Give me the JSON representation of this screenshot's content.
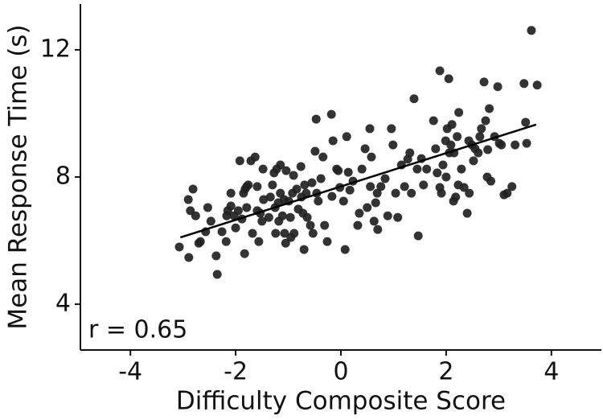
{
  "chart_data": {
    "type": "scatter",
    "xlabel": "Difficulty Composite Score",
    "ylabel": "Mean Response Time (s)",
    "annotation": "r = 0.65",
    "color": "#222222",
    "xlim": [
      -4.95,
      4.95
    ],
    "xticks": [
      -4,
      -2,
      0,
      2,
      4
    ],
    "ylim": [
      2.56,
      13.44
    ],
    "yticks": [
      4,
      8,
      12
    ],
    "grid": false,
    "x": [
      -3.07,
      -2.9,
      -2.81,
      -2.86,
      -2.76,
      -2.89,
      -2.7,
      -2.67,
      -2.57,
      -2.47,
      -2.53,
      -2.37,
      -2.35,
      -2.26,
      -2.15,
      -2.17,
      -2.09,
      -2.09,
      -2.03,
      -2.0,
      -1.95,
      -1.92,
      -1.88,
      -1.85,
      -1.82,
      -1.83,
      -1.79,
      -1.79,
      -1.71,
      -1.68,
      -1.63,
      -1.59,
      -1.59,
      -1.56,
      -1.53,
      -1.5,
      -1.48,
      -1.47,
      -1.37,
      -1.34,
      -1.3,
      -1.27,
      -1.25,
      -1.24,
      -1.22,
      -1.19,
      -1.18,
      -1.15,
      -1.15,
      -1.11,
      -1.08,
      -1.07,
      -1.05,
      -1.04,
      -0.99,
      -0.96,
      -0.95,
      -0.92,
      -0.9,
      -0.89,
      -0.84,
      -0.81,
      -0.76,
      -0.75,
      -0.72,
      -0.7,
      -0.69,
      -0.66,
      -0.64,
      -0.58,
      -0.55,
      -0.53,
      -0.49,
      -0.47,
      -0.46,
      -0.43,
      -0.38,
      -0.34,
      -0.31,
      -0.26,
      -0.18,
      -0.17,
      -0.15,
      -0.08,
      -0.05,
      -0.02,
      0.05,
      0.08,
      0.11,
      0.14,
      0.17,
      0.23,
      0.32,
      0.35,
      0.4,
      0.46,
      0.5,
      0.55,
      0.56,
      0.58,
      0.63,
      0.66,
      0.69,
      0.7,
      0.76,
      0.84,
      0.89,
      0.96,
      0.99,
      1.04,
      1.08,
      1.15,
      1.21,
      1.27,
      1.31,
      1.34,
      1.39,
      1.45,
      1.47,
      1.53,
      1.57,
      1.63,
      1.76,
      1.8,
      1.83,
      1.88,
      1.88,
      1.91,
      1.94,
      1.99,
      2.0,
      2.02,
      2.05,
      2.06,
      2.09,
      2.11,
      2.14,
      2.15,
      2.18,
      2.21,
      2.23,
      2.24,
      2.29,
      2.34,
      2.4,
      2.43,
      2.44,
      2.49,
      2.52,
      2.55,
      2.61,
      2.64,
      2.67,
      2.72,
      2.75,
      2.78,
      2.79,
      2.82,
      2.85,
      2.92,
      2.98,
      3.01,
      3.05,
      3.1,
      3.16,
      3.25,
      3.31,
      3.51,
      3.53,
      3.62,
      3.48,
      3.73,
      -1.76,
      -2.18
    ],
    "y": [
      5.8,
      7.29,
      7.62,
      6.94,
      6.78,
      5.47,
      5.92,
      5.97,
      6.28,
      6.61,
      7.04,
      5.52,
      4.94,
      6.28,
      6.94,
      6.78,
      7.49,
      7.09,
      6.78,
      6.4,
      6.94,
      8.51,
      6.68,
      7.49,
      7.62,
      5.59,
      7.7,
      7.04,
      8.51,
      6.23,
      8.63,
      7.7,
      6.94,
      5.97,
      6.86,
      6.61,
      8.25,
      7.29,
      6.73,
      7.37,
      7.75,
      8.13,
      7.04,
      6.23,
      8.25,
      7.19,
      6.61,
      8.38,
      7.49,
      6.78,
      7.29,
      6.23,
      5.92,
      8.2,
      7.24,
      6.73,
      6.1,
      7.49,
      8.05,
      6.23,
      7.62,
      6.99,
      8.33,
      7.37,
      6.86,
      5.72,
      7.75,
      7.49,
      6.73,
      6.48,
      7.82,
      6.23,
      8.81,
      9.82,
      7.49,
      7.24,
      7.95,
      8.63,
      6.48,
      5.97,
      9.97,
      7.39,
      9.14,
      8.25,
      8.2,
      7.67,
      7.24,
      5.72,
      9.27,
      8.15,
      7.59,
      7.87,
      6.48,
      6.86,
      8.25,
      8.89,
      7.04,
      9.52,
      7.7,
      8.63,
      6.61,
      7.19,
      7.49,
      6.35,
      7.7,
      7.95,
      6.78,
      9.52,
      9.01,
      7.49,
      6.73,
      8.38,
      7.7,
      8.56,
      8.76,
      7.49,
      10.46,
      8.25,
      6.15,
      8.58,
      7.75,
      8.25,
      9.77,
      8.89,
      8.13,
      7.67,
      11.34,
      7.49,
      8.38,
      9.14,
      8.0,
      9.52,
      11.09,
      8.76,
      9.01,
      9.65,
      7.24,
      8.76,
      7.37,
      9.27,
      7.75,
      10.03,
      8.25,
      7.67,
      6.86,
      9.14,
      7.49,
      9.01,
      8.51,
      8.89,
      8.76,
      9.27,
      9.52,
      10.99,
      9.77,
      8.0,
      8.86,
      10.15,
      7.87,
      9.27,
      10.84,
      9.06,
      9.01,
      7.44,
      7.49,
      7.7,
      9.01,
      9.72,
      9.06,
      12.61,
      10.94,
      10.89,
      7.75,
      5.97
    ],
    "fit_line": {
      "x": [
        -3.05,
        3.71
      ],
      "y": [
        6.1,
        9.65
      ]
    }
  }
}
